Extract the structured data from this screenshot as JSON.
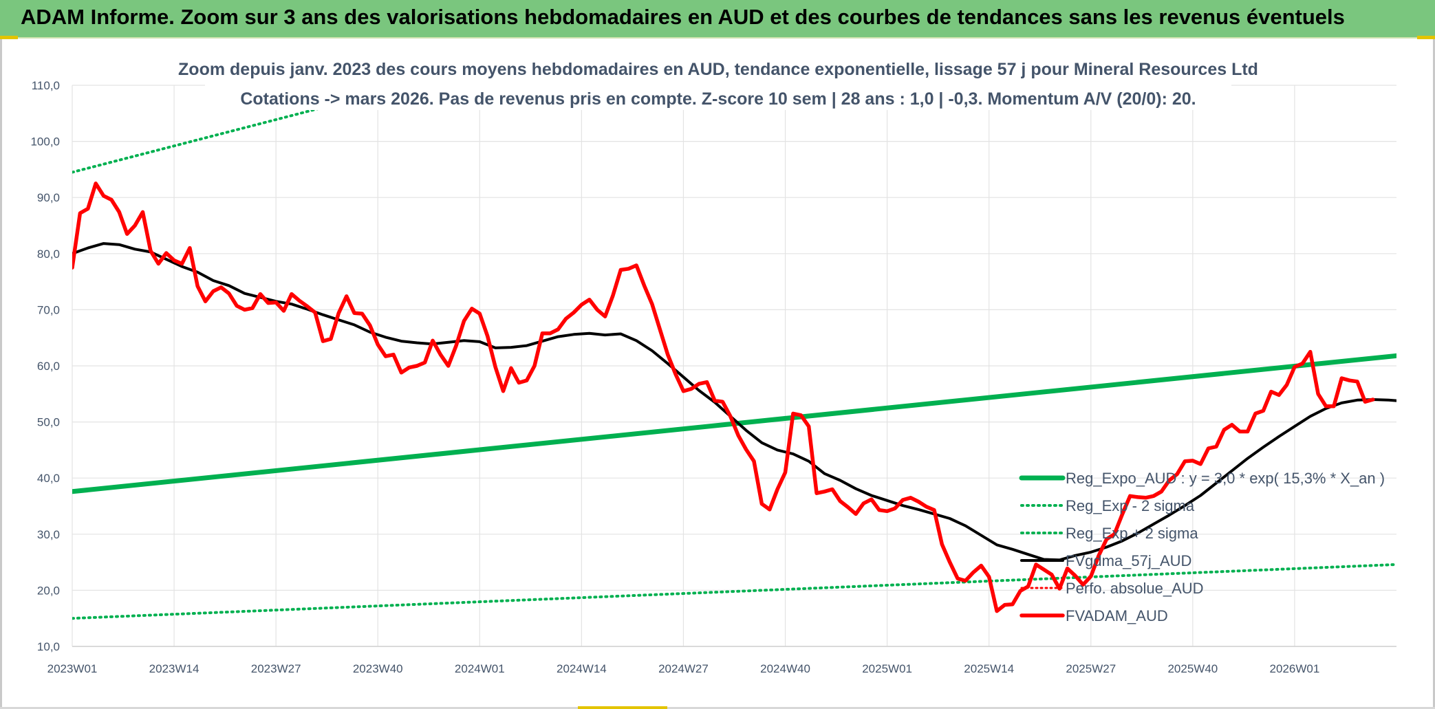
{
  "header": {
    "title": "ADAM Informe. Zoom sur 3 ans des valorisations hebdomadaires en AUD et des courbes de tendances sans les revenus éventuels"
  },
  "colors": {
    "header_bg": "#7ac67e",
    "regression": "#00b050",
    "sigma_bands": "#00b050",
    "fvgdma": "#000000",
    "perf_absolue": "#ff0000",
    "fvadam": "#ff0000",
    "text": "#44546a"
  },
  "chart_data": {
    "type": "line",
    "title_line1": "Zoom depuis janv. 2023 des cours moyens hebdomadaires en AUD, tendance exponentielle, lissage 57 j pour Mineral Resources Ltd",
    "title_line2": "Cotations -> mars 2026. Pas de revenus pris en compte. Z-score 10 sem | 28 ans : 1,0 | -0,3. Momentum A/V (20/0): 20.",
    "xlabel": "",
    "ylabel": "",
    "ylim": [
      10,
      110
    ],
    "y_ticks": [
      "10,0",
      "20,0",
      "30,0",
      "40,0",
      "50,0",
      "60,0",
      "70,0",
      "80,0",
      "90,0",
      "100,0",
      "110,0"
    ],
    "x_ticks": [
      "2023W01",
      "2023W14",
      "2023W27",
      "2023W40",
      "2024W01",
      "2024W14",
      "2024W27",
      "2024W40",
      "2025W01",
      "2025W14",
      "2025W27",
      "2025W40",
      "2026W01"
    ],
    "grid": true,
    "legend_position": "right-lower",
    "legend": [
      "Reg_Expo_AUD : y = 3,0 * exp( 15,3% * X_an )",
      "Reg_Exp - 2 sigma",
      "Reg_Exp + 2 sigma",
      "FVgdma_57j_AUD",
      "Perfo. absolue_AUD",
      "FVADAM_AUD"
    ],
    "series": [
      {
        "name": "Reg_Expo_AUD : y = 3,0 * exp( 15,3% * X_an )",
        "style": "thick",
        "points": [
          [
            0,
            37.6
          ],
          [
            169,
            61.8
          ]
        ]
      },
      {
        "name": "Reg_Exp - 2 sigma",
        "style": "dotted",
        "points": [
          [
            0,
            15.0
          ],
          [
            169,
            24.6
          ]
        ]
      },
      {
        "name": "Reg_Exp + 2 sigma",
        "style": "dotted",
        "points": [
          [
            0,
            94.5
          ],
          [
            169,
            155.5
          ]
        ]
      },
      {
        "name": "FVgdma_57j_AUD",
        "style": "medium",
        "points": [
          [
            0,
            80
          ],
          [
            2,
            81
          ],
          [
            4,
            81.8
          ],
          [
            6,
            81.6
          ],
          [
            8,
            80.8
          ],
          [
            10,
            80.3
          ],
          [
            12,
            79
          ],
          [
            14,
            77.7
          ],
          [
            16,
            76.7
          ],
          [
            18,
            75.2
          ],
          [
            20,
            74.3
          ],
          [
            22,
            72.9
          ],
          [
            24,
            72.2
          ],
          [
            26,
            71.5
          ],
          [
            28,
            71
          ],
          [
            30,
            70.1
          ],
          [
            32,
            69.1
          ],
          [
            34,
            68.2
          ],
          [
            36,
            67.3
          ],
          [
            38,
            66
          ],
          [
            40,
            65.1
          ],
          [
            42,
            64.4
          ],
          [
            44,
            64.1
          ],
          [
            46,
            63.9
          ],
          [
            48,
            64.2
          ],
          [
            50,
            64.5
          ],
          [
            52,
            64.3
          ],
          [
            54,
            63.2
          ],
          [
            56,
            63.3
          ],
          [
            58,
            63.6
          ],
          [
            60,
            64.4
          ],
          [
            62,
            65.2
          ],
          [
            64,
            65.6
          ],
          [
            66,
            65.8
          ],
          [
            68,
            65.5
          ],
          [
            70,
            65.7
          ],
          [
            72,
            64.5
          ],
          [
            74,
            62.7
          ],
          [
            76,
            60.4
          ],
          [
            78,
            58
          ],
          [
            80,
            55.6
          ],
          [
            82,
            53.5
          ],
          [
            84,
            51
          ],
          [
            86,
            48.5
          ],
          [
            88,
            46.3
          ],
          [
            90,
            45
          ],
          [
            92,
            44.3
          ],
          [
            94,
            43
          ],
          [
            96,
            40.8
          ],
          [
            98,
            39.6
          ],
          [
            100,
            38.1
          ],
          [
            102,
            36.9
          ],
          [
            104,
            36
          ],
          [
            106,
            35.1
          ],
          [
            108,
            34.4
          ],
          [
            110,
            33.6
          ],
          [
            112,
            32.8
          ],
          [
            114,
            31.5
          ],
          [
            116,
            29.8
          ],
          [
            118,
            28.1
          ],
          [
            120,
            27.3
          ],
          [
            122,
            26.4
          ],
          [
            124,
            25.5
          ],
          [
            126,
            25.4
          ],
          [
            128,
            26.2
          ],
          [
            130,
            26.8
          ],
          [
            132,
            27.7
          ],
          [
            134,
            28.8
          ],
          [
            136,
            30.2
          ],
          [
            138,
            31.8
          ],
          [
            140,
            33.4
          ],
          [
            142,
            35.1
          ],
          [
            144,
            36.9
          ],
          [
            146,
            39.1
          ],
          [
            148,
            41.3
          ],
          [
            150,
            43.5
          ],
          [
            152,
            45.5
          ],
          [
            154,
            47.4
          ],
          [
            156,
            49.2
          ],
          [
            158,
            51
          ],
          [
            160,
            52.4
          ],
          [
            162,
            53.4
          ],
          [
            164,
            53.9
          ],
          [
            166,
            54
          ],
          [
            168,
            53.9
          ],
          [
            169,
            53.8
          ]
        ]
      },
      {
        "name": "Perfo. absolue_AUD",
        "style": "dotted-red",
        "points": []
      },
      {
        "name": "FVADAM_AUD",
        "style": "thick-red",
        "points": [
          [
            0,
            77.5
          ],
          [
            1,
            87.2
          ],
          [
            2,
            88
          ],
          [
            3,
            92.5
          ],
          [
            4,
            90.3
          ],
          [
            5,
            89.6
          ],
          [
            6,
            87.4
          ],
          [
            7,
            83.5
          ],
          [
            8,
            85
          ],
          [
            9,
            87.4
          ],
          [
            10,
            80.5
          ],
          [
            11,
            78.2
          ],
          [
            12,
            80.1
          ],
          [
            13,
            78.8
          ],
          [
            14,
            78.2
          ],
          [
            15,
            81
          ],
          [
            16,
            74.2
          ],
          [
            17,
            71.5
          ],
          [
            18,
            73.3
          ],
          [
            19,
            74
          ],
          [
            20,
            72.9
          ],
          [
            21,
            70.7
          ],
          [
            22,
            70
          ],
          [
            23,
            70.3
          ],
          [
            24,
            72.8
          ],
          [
            25,
            71.2
          ],
          [
            26,
            71.3
          ],
          [
            27,
            69.8
          ],
          [
            28,
            72.8
          ],
          [
            29,
            71.6
          ],
          [
            30,
            70.6
          ],
          [
            31,
            69.5
          ],
          [
            32,
            64.4
          ],
          [
            33,
            64.8
          ],
          [
            34,
            69.4
          ],
          [
            35,
            72.4
          ],
          [
            36,
            69.4
          ],
          [
            37,
            69.3
          ],
          [
            38,
            67.2
          ],
          [
            39,
            63.8
          ],
          [
            40,
            61.7
          ],
          [
            41,
            62
          ],
          [
            42,
            58.8
          ],
          [
            43,
            59.7
          ],
          [
            44,
            60
          ],
          [
            45,
            60.6
          ],
          [
            46,
            64.5
          ],
          [
            47,
            62
          ],
          [
            48,
            60
          ],
          [
            49,
            63.6
          ],
          [
            50,
            68
          ],
          [
            51,
            70.2
          ],
          [
            52,
            69.3
          ],
          [
            53,
            65.3
          ],
          [
            54,
            59.8
          ],
          [
            55,
            55.5
          ],
          [
            56,
            59.6
          ],
          [
            57,
            57
          ],
          [
            58,
            57.4
          ],
          [
            59,
            60
          ],
          [
            60,
            65.8
          ],
          [
            61,
            65.8
          ],
          [
            62,
            66.5
          ],
          [
            63,
            68.4
          ],
          [
            64,
            69.5
          ],
          [
            65,
            70.9
          ],
          [
            66,
            71.8
          ],
          [
            67,
            70
          ],
          [
            68,
            68.8
          ],
          [
            69,
            72.5
          ],
          [
            70,
            77.1
          ],
          [
            71,
            77.3
          ],
          [
            72,
            77.9
          ],
          [
            73,
            74.3
          ],
          [
            74,
            71
          ],
          [
            75,
            66.5
          ],
          [
            76,
            62
          ],
          [
            77,
            58.5
          ],
          [
            78,
            55.5
          ],
          [
            79,
            55.9
          ],
          [
            80,
            56.8
          ],
          [
            81,
            57.1
          ],
          [
            82,
            53.8
          ],
          [
            83,
            53.6
          ],
          [
            84,
            51
          ],
          [
            85,
            47.6
          ],
          [
            86,
            45.1
          ],
          [
            87,
            43
          ],
          [
            88,
            35.4
          ],
          [
            89,
            34.4
          ],
          [
            90,
            38
          ],
          [
            91,
            41
          ],
          [
            92,
            51.5
          ],
          [
            93,
            51.2
          ],
          [
            94,
            49.2
          ],
          [
            95,
            37.3
          ],
          [
            96,
            37.6
          ],
          [
            97,
            38
          ],
          [
            98,
            35.9
          ],
          [
            99,
            34.8
          ],
          [
            100,
            33.6
          ],
          [
            101,
            35.5
          ],
          [
            102,
            36.2
          ],
          [
            103,
            34.3
          ],
          [
            104,
            34.1
          ],
          [
            105,
            34.6
          ],
          [
            106,
            36.1
          ],
          [
            107,
            36.5
          ],
          [
            108,
            35.8
          ],
          [
            109,
            34.9
          ],
          [
            110,
            34.3
          ],
          [
            111,
            28.2
          ],
          [
            112,
            25
          ],
          [
            113,
            22.1
          ],
          [
            114,
            21.7
          ],
          [
            115,
            23.2
          ],
          [
            116,
            24.4
          ],
          [
            117,
            22.4
          ],
          [
            118,
            16.3
          ],
          [
            119,
            17.4
          ],
          [
            120,
            17.5
          ],
          [
            121,
            19.9
          ],
          [
            122,
            20.7
          ],
          [
            123,
            24.6
          ],
          [
            124,
            23.7
          ],
          [
            125,
            22.8
          ],
          [
            126,
            20.3
          ],
          [
            127,
            23.9
          ],
          [
            128,
            22.6
          ],
          [
            129,
            21
          ],
          [
            130,
            22.5
          ],
          [
            131,
            26.2
          ],
          [
            132,
            29.1
          ],
          [
            133,
            30
          ],
          [
            134,
            33.5
          ],
          [
            135,
            36.8
          ],
          [
            136,
            36.6
          ],
          [
            137,
            36.5
          ],
          [
            138,
            36.8
          ],
          [
            139,
            37.6
          ],
          [
            140,
            39.6
          ],
          [
            141,
            40.7
          ],
          [
            142,
            43
          ],
          [
            143,
            43.1
          ],
          [
            144,
            42.5
          ],
          [
            145,
            45.3
          ],
          [
            146,
            45.6
          ],
          [
            147,
            48.6
          ],
          [
            148,
            49.5
          ],
          [
            149,
            48.3
          ],
          [
            150,
            48.3
          ],
          [
            151,
            51.5
          ],
          [
            152,
            52
          ],
          [
            153,
            55.4
          ],
          [
            154,
            54.8
          ],
          [
            155,
            56.6
          ],
          [
            156,
            59.8
          ],
          [
            157,
            60.4
          ],
          [
            158,
            62.5
          ],
          [
            159,
            55
          ],
          [
            160,
            52.8
          ],
          [
            161,
            52.8
          ],
          [
            162,
            57.8
          ],
          [
            163,
            57.4
          ],
          [
            164,
            57.2
          ],
          [
            165,
            53.6
          ],
          [
            166,
            54
          ]
        ]
      }
    ]
  }
}
